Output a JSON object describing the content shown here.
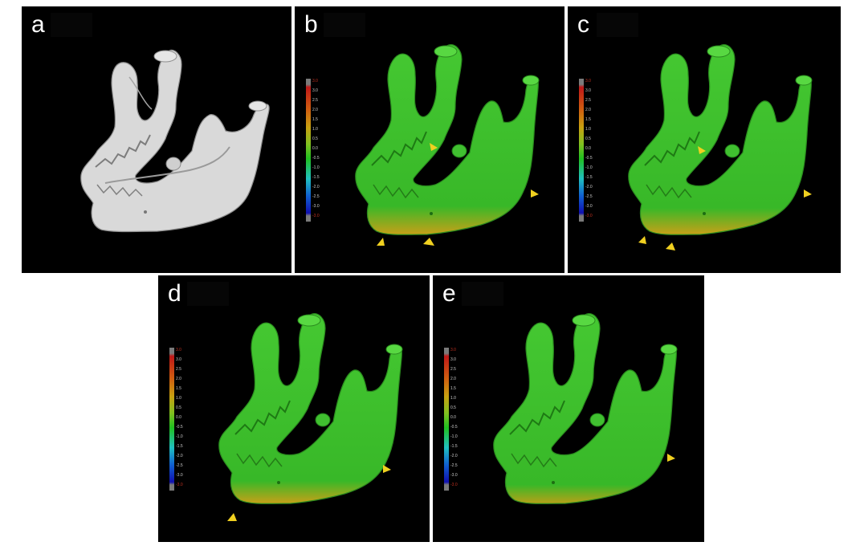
{
  "figure": {
    "panels": [
      {
        "id": "a",
        "label": "a",
        "model": "grey-mandible",
        "has_scale": false,
        "arrowheads": 0
      },
      {
        "id": "b",
        "label": "b",
        "model": "color-mapped-mandible",
        "has_scale": true,
        "arrowheads": 4
      },
      {
        "id": "c",
        "label": "c",
        "model": "color-mapped-mandible",
        "has_scale": true,
        "arrowheads": 4
      },
      {
        "id": "d",
        "label": "d",
        "model": "color-mapped-mandible",
        "has_scale": true,
        "arrowheads": 2
      },
      {
        "id": "e",
        "label": "e",
        "model": "color-mapped-mandible",
        "has_scale": true,
        "arrowheads": 1
      }
    ],
    "color_scale": {
      "ticks": [
        "3.0",
        "3.0",
        "2.5",
        "2.0",
        "1.5",
        "1.0",
        "0.5",
        "0.0",
        "-0.5",
        "-1.0",
        "-1.5",
        "-2.0",
        "-2.5",
        "-3.0",
        "-3.0"
      ],
      "colors": [
        "#7a7a7a",
        "#c01818",
        "#d06010",
        "#c8a010",
        "#80c020",
        "#20c020",
        "#20c0c0",
        "#1060d0",
        "#1010b0",
        "#7a7a7a"
      ]
    },
    "colors": {
      "background": "#000000",
      "bone_grey": "#d9d9d9",
      "bone_green": "#3bbf2a",
      "arrowhead": "#f0d020"
    }
  }
}
